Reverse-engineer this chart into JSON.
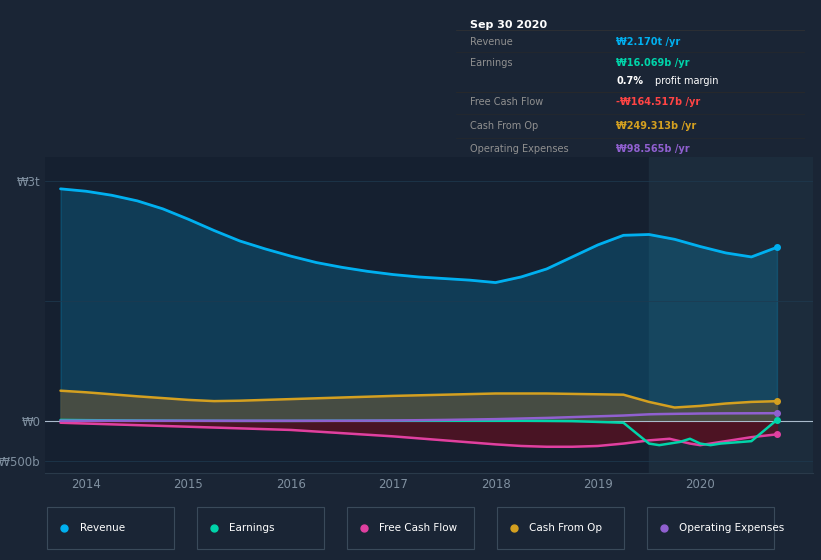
{
  "bg_color": "#1a2535",
  "plot_bg_color": "#152030",
  "plot_bg_right": "#1c2c3c",
  "grid_color": "#1e3a50",
  "text_color": "#8090a0",
  "ytick_labels": [
    "₩3t",
    "₩0",
    "-₩500b"
  ],
  "ytick_values": [
    3000,
    0,
    -500
  ],
  "ylim": [
    -650,
    3300
  ],
  "xlim": [
    2013.6,
    2021.1
  ],
  "xtick_years": [
    2014,
    2015,
    2016,
    2017,
    2018,
    2019,
    2020
  ],
  "highlight_x_start": 2019.5,
  "legend_items": [
    {
      "label": "Revenue",
      "color": "#00b0f0"
    },
    {
      "label": "Earnings",
      "color": "#00d4aa"
    },
    {
      "label": "Free Cash Flow",
      "color": "#e040a0"
    },
    {
      "label": "Cash From Op",
      "color": "#d4a020"
    },
    {
      "label": "Operating Expenses",
      "color": "#9060d0"
    }
  ],
  "revenue": {
    "x": [
      2013.75,
      2014.0,
      2014.25,
      2014.5,
      2014.75,
      2015.0,
      2015.25,
      2015.5,
      2015.75,
      2016.0,
      2016.25,
      2016.5,
      2016.75,
      2017.0,
      2017.25,
      2017.5,
      2017.75,
      2018.0,
      2018.25,
      2018.5,
      2018.75,
      2019.0,
      2019.25,
      2019.5,
      2019.75,
      2020.0,
      2020.25,
      2020.5,
      2020.75
    ],
    "y": [
      2900,
      2870,
      2820,
      2750,
      2650,
      2520,
      2380,
      2250,
      2150,
      2060,
      1980,
      1920,
      1870,
      1830,
      1800,
      1780,
      1760,
      1730,
      1800,
      1900,
      2050,
      2200,
      2320,
      2330,
      2270,
      2180,
      2100,
      2050,
      2170
    ],
    "color": "#00b0f0",
    "lw": 2.0
  },
  "earnings": {
    "x": [
      2013.75,
      2014.0,
      2014.5,
      2015.0,
      2015.5,
      2016.0,
      2016.5,
      2017.0,
      2017.5,
      2018.0,
      2018.25,
      2018.5,
      2018.75,
      2019.0,
      2019.25,
      2019.5,
      2019.6,
      2019.7,
      2019.8,
      2019.9,
      2020.0,
      2020.1,
      2020.2,
      2020.5,
      2020.75
    ],
    "y": [
      15,
      12,
      8,
      5,
      3,
      3,
      5,
      5,
      5,
      5,
      5,
      3,
      0,
      -10,
      -20,
      -280,
      -300,
      -280,
      -260,
      -220,
      -280,
      -300,
      -280,
      -250,
      16
    ],
    "color": "#00d4aa",
    "lw": 1.8
  },
  "free_cash_flow": {
    "x": [
      2013.75,
      2014.0,
      2014.5,
      2015.0,
      2015.5,
      2016.0,
      2016.5,
      2017.0,
      2017.5,
      2018.0,
      2018.25,
      2018.5,
      2018.75,
      2019.0,
      2019.25,
      2019.5,
      2019.6,
      2019.7,
      2019.8,
      2019.9,
      2020.0,
      2020.1,
      2020.2,
      2020.3,
      2020.5,
      2020.75
    ],
    "y": [
      -20,
      -30,
      -50,
      -70,
      -90,
      -110,
      -150,
      -190,
      -240,
      -290,
      -310,
      -320,
      -320,
      -310,
      -280,
      -240,
      -230,
      -220,
      -250,
      -280,
      -300,
      -280,
      -260,
      -240,
      -200,
      -165
    ],
    "color": "#e040a0",
    "lw": 1.8
  },
  "cash_from_op": {
    "x": [
      2013.75,
      2014.0,
      2014.5,
      2015.0,
      2015.25,
      2015.5,
      2015.75,
      2016.0,
      2016.5,
      2017.0,
      2017.5,
      2018.0,
      2018.5,
      2019.0,
      2019.25,
      2019.5,
      2019.75,
      2020.0,
      2020.25,
      2020.5,
      2020.75
    ],
    "y": [
      380,
      360,
      310,
      265,
      250,
      255,
      265,
      275,
      295,
      315,
      330,
      345,
      345,
      335,
      330,
      240,
      170,
      190,
      220,
      240,
      249
    ],
    "color": "#d4a020",
    "lw": 1.8
  },
  "operating_expenses": {
    "x": [
      2013.75,
      2014.0,
      2014.5,
      2015.0,
      2015.5,
      2016.0,
      2016.5,
      2017.0,
      2017.5,
      2018.0,
      2018.5,
      2019.0,
      2019.25,
      2019.5,
      2019.6,
      2019.7,
      2019.8,
      2019.9,
      2020.0,
      2020.25,
      2020.5,
      2020.75
    ],
    "y": [
      5,
      5,
      5,
      5,
      5,
      5,
      5,
      8,
      15,
      25,
      40,
      60,
      70,
      85,
      88,
      90,
      92,
      93,
      95,
      97,
      98,
      99
    ],
    "color": "#9060d0",
    "lw": 1.8
  },
  "info_box": {
    "title": "Sep 30 2020",
    "rows": [
      {
        "label": "Revenue",
        "value": "₩2.170t /yr",
        "value_color": "#00b0f0"
      },
      {
        "label": "Earnings",
        "value": "₩16.069b /yr",
        "value_color": "#00d4aa"
      },
      {
        "label": "",
        "value": "0.7% profit margin",
        "value_color": "#ffffff"
      },
      {
        "label": "Free Cash Flow",
        "value": "-₩164.517b /yr",
        "value_color": "#ff4444"
      },
      {
        "label": "Cash From Op",
        "value": "₩249.313b /yr",
        "value_color": "#d4a020"
      },
      {
        "label": "Operating Expenses",
        "value": "₩98.565b /yr",
        "value_color": "#9060d0"
      }
    ]
  }
}
